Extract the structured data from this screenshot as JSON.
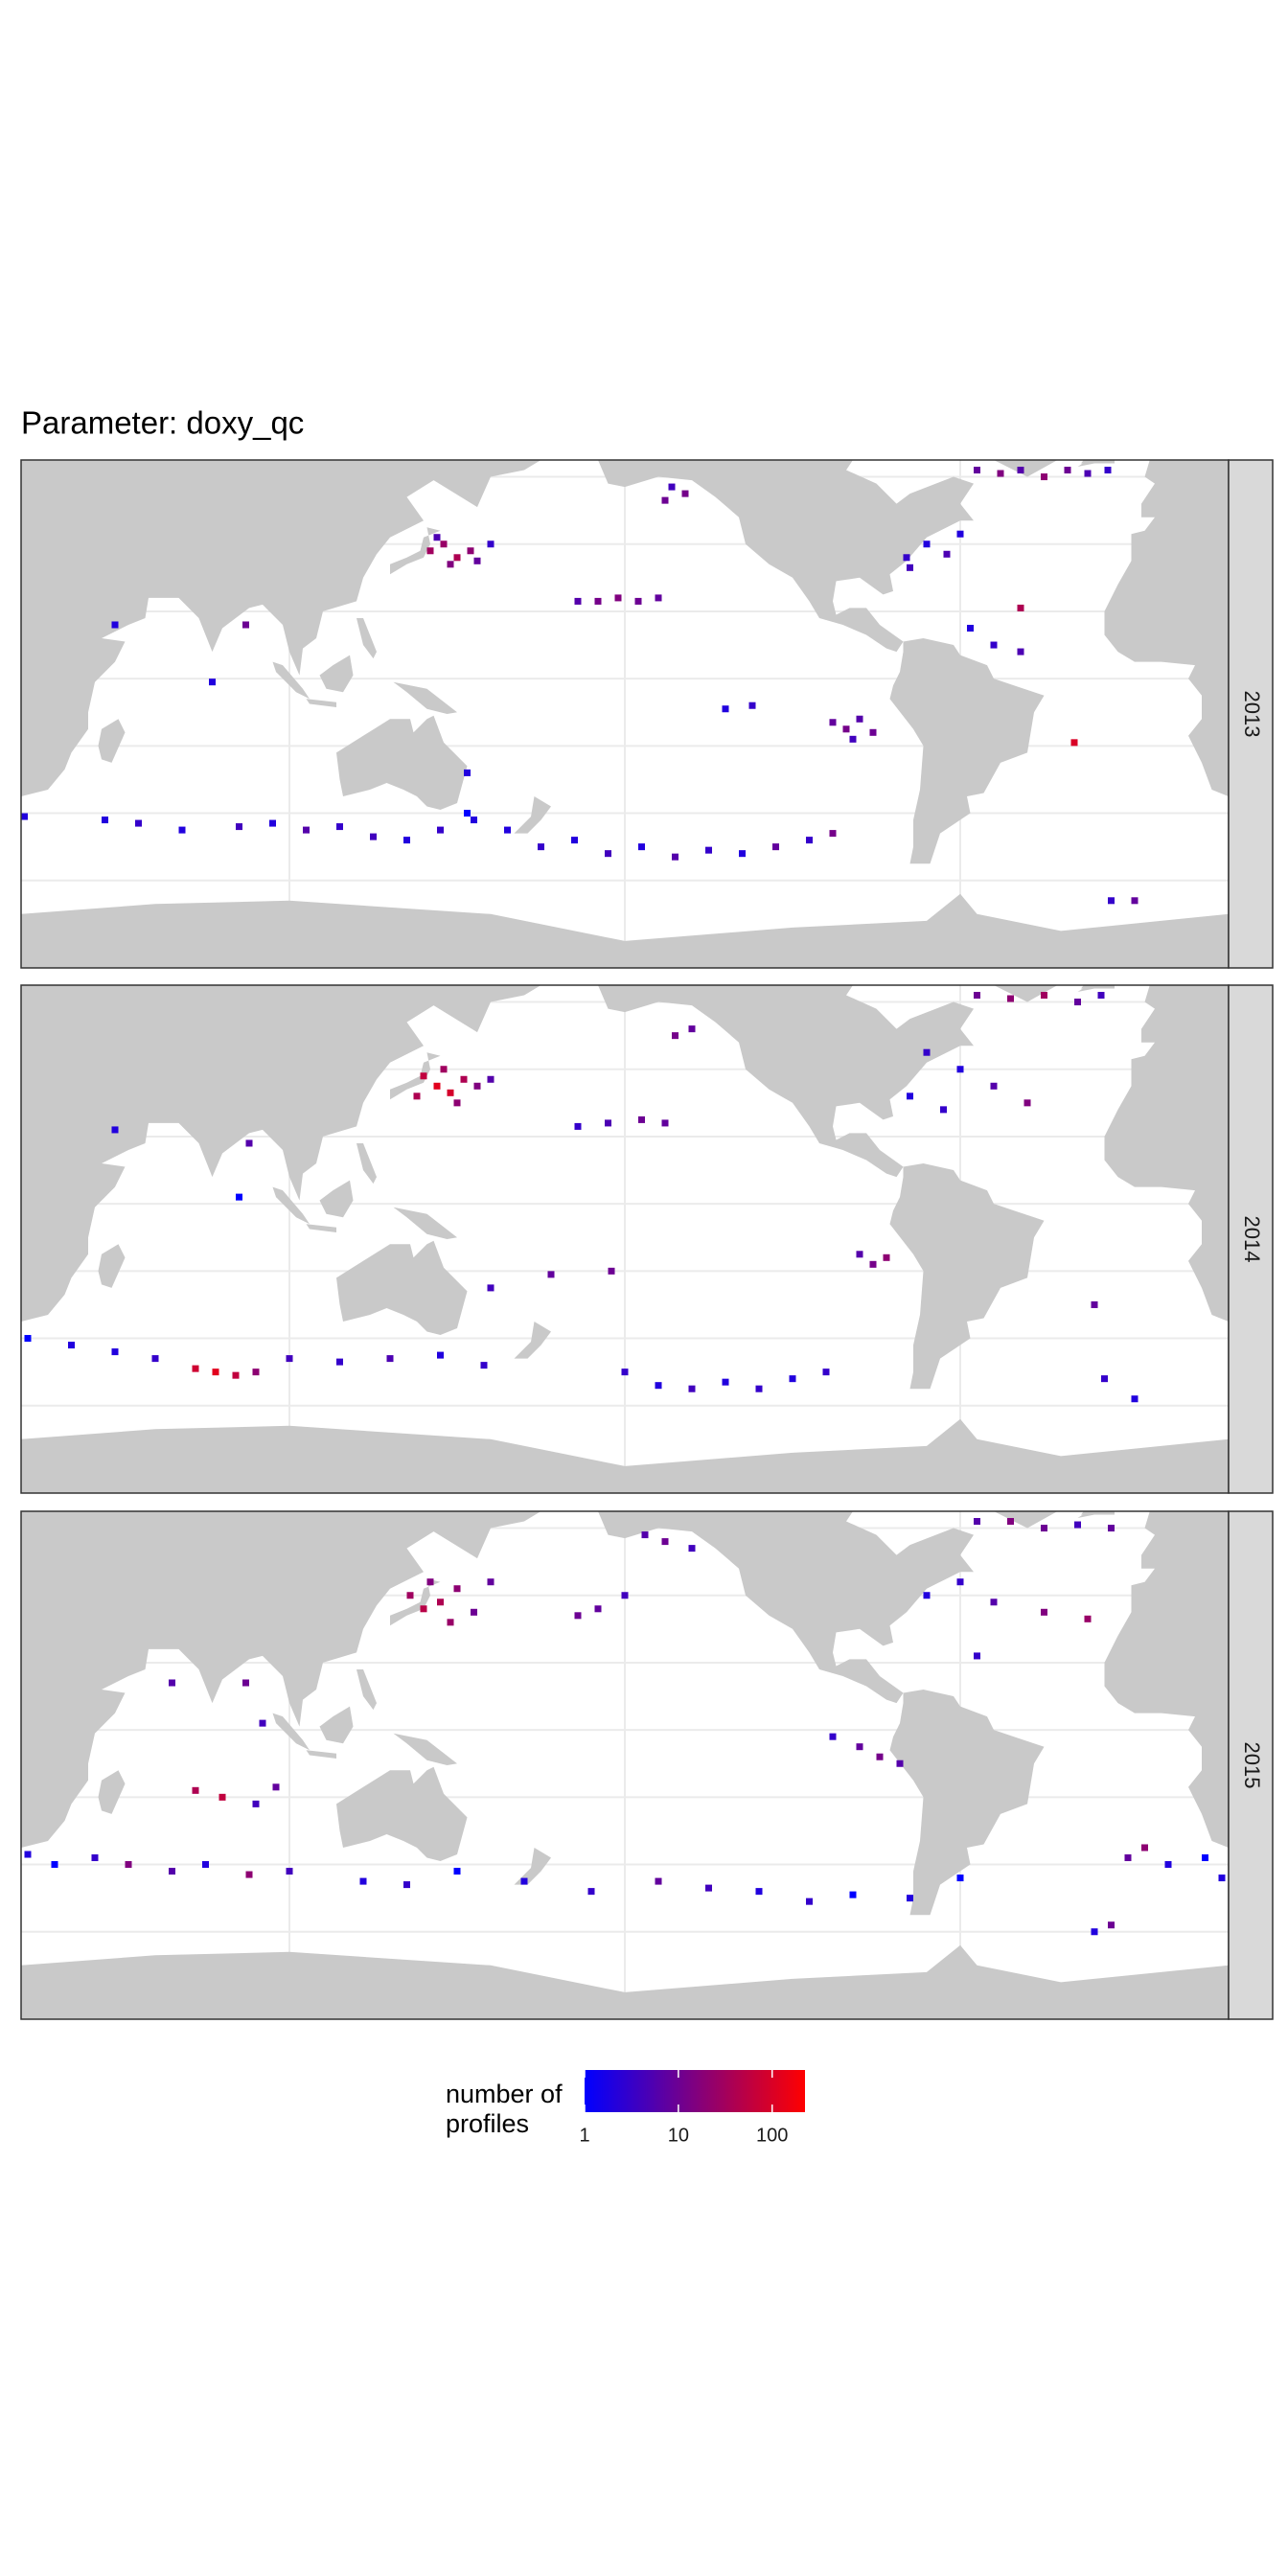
{
  "chart_data": {
    "type": "map",
    "title": "Parameter: doxy_qc",
    "xlim": [
      20,
      380
    ],
    "ylim": [
      -86,
      65
    ],
    "xticks": [
      100,
      200,
      300
    ],
    "yticks": [
      -60,
      -40,
      -20,
      0,
      20,
      40,
      60
    ],
    "grid": true,
    "facets": [
      {
        "label": "2013",
        "lon": [
          142,
          146,
          150,
          154,
          148,
          156,
          144,
          160,
          186,
          192,
          198,
          204,
          210,
          212,
          218,
          214,
          305,
          312,
          318,
          325,
          332,
          338,
          344,
          284,
          290,
          296,
          300,
          285,
          318,
          303,
          310,
          318,
          262,
          266,
          270,
          274,
          268,
          230,
          238,
          165,
          175,
          185,
          195,
          205,
          215,
          225,
          235,
          245,
          255,
          262,
          45,
          55,
          68,
          85,
          95,
          105,
          115,
          125,
          135,
          145,
          155,
          77,
          87,
          48,
          345,
          352,
          334,
          21,
          153,
          153
        ],
        "lat": [
          38,
          40,
          36,
          38,
          34,
          35,
          42,
          40,
          23,
          23,
          24,
          23,
          24,
          53,
          55,
          57,
          62,
          61,
          62,
          60,
          62,
          61,
          62,
          36,
          40,
          37,
          43,
          33,
          21,
          15,
          10,
          8,
          -13,
          -15,
          -12,
          -16,
          -18,
          -9,
          -8,
          -45,
          -50,
          -48,
          -52,
          -50,
          -53,
          -51,
          -52,
          -50,
          -48,
          -46,
          -42,
          -43,
          -45,
          -44,
          -43,
          -45,
          -44,
          -47,
          -48,
          -45,
          -42,
          -1,
          16,
          16,
          -66,
          -66,
          -19,
          -41,
          -28,
          -40
        ],
        "values": [
          30,
          25,
          40,
          20,
          15,
          8,
          5,
          3,
          6,
          12,
          15,
          10,
          8,
          10,
          12,
          4,
          8,
          15,
          6,
          20,
          10,
          5,
          3,
          3,
          2,
          5,
          2,
          4,
          40,
          2,
          3,
          5,
          8,
          12,
          6,
          10,
          4,
          2,
          3,
          2,
          3,
          2,
          4,
          2,
          6,
          3,
          2,
          8,
          3,
          12,
          2,
          3,
          2,
          4,
          2,
          6,
          3,
          4,
          2,
          3,
          2,
          2,
          10,
          2,
          3,
          8,
          100,
          2,
          2,
          1
        ]
      },
      {
        "label": "2014",
        "lon": [
          140,
          144,
          148,
          152,
          146,
          156,
          160,
          138,
          150,
          186,
          195,
          205,
          212,
          215,
          220,
          305,
          315,
          325,
          335,
          342,
          290,
          300,
          310,
          320,
          285,
          295,
          270,
          274,
          278,
          72,
          78,
          84,
          90,
          22,
          35,
          48,
          60,
          100,
          115,
          130,
          145,
          158,
          200,
          210,
          220,
          230,
          240,
          250,
          260,
          48,
          88,
          85,
          160,
          178,
          196,
          340,
          343,
          352
        ],
        "lat": [
          38,
          35,
          33,
          37,
          40,
          35,
          37,
          32,
          30,
          23,
          24,
          25,
          24,
          50,
          52,
          62,
          61,
          62,
          60,
          62,
          45,
          40,
          35,
          30,
          32,
          28,
          -15,
          -18,
          -16,
          -49,
          -50,
          -51,
          -50,
          -40,
          -42,
          -44,
          -46,
          -46,
          -47,
          -46,
          -45,
          -48,
          -50,
          -54,
          -55,
          -53,
          -55,
          -52,
          -50,
          22,
          18,
          2,
          -25,
          -21,
          -20,
          -30,
          -52,
          -58
        ],
        "values": [
          60,
          120,
          90,
          40,
          30,
          15,
          6,
          40,
          20,
          3,
          5,
          10,
          8,
          12,
          8,
          10,
          20,
          30,
          8,
          4,
          3,
          2,
          6,
          15,
          2,
          3,
          6,
          12,
          20,
          80,
          120,
          60,
          20,
          1,
          2,
          2,
          3,
          4,
          3,
          5,
          2,
          3,
          3,
          2,
          4,
          2,
          3,
          2,
          3,
          2,
          6,
          1,
          4,
          8,
          10,
          8,
          3,
          2
        ]
      },
      {
        "label": "2015",
        "lon": [
          136,
          140,
          145,
          150,
          155,
          148,
          160,
          142,
          206,
          212,
          220,
          186,
          192,
          200,
          305,
          315,
          325,
          335,
          345,
          290,
          300,
          310,
          325,
          338,
          305,
          65,
          87,
          92,
          72,
          80,
          90,
          96,
          22,
          30,
          42,
          52,
          65,
          75,
          88,
          100,
          122,
          135,
          150,
          170,
          190,
          210,
          225,
          240,
          255,
          268,
          285,
          300,
          350,
          355,
          362,
          373,
          340,
          345,
          378,
          262,
          270,
          276,
          282
        ],
        "lat": [
          40,
          36,
          38,
          42,
          35,
          32,
          44,
          44,
          58,
          56,
          54,
          34,
          36,
          40,
          62,
          62,
          60,
          61,
          60,
          40,
          44,
          38,
          35,
          33,
          22,
          14,
          14,
          2,
          -18,
          -20,
          -22,
          -17,
          -37,
          -40,
          -38,
          -40,
          -42,
          -40,
          -43,
          -42,
          -45,
          -46,
          -42,
          -45,
          -48,
          -45,
          -47,
          -48,
          -51,
          -49,
          -50,
          -44,
          -38,
          -35,
          -40,
          -38,
          -60,
          -58,
          -44,
          -2,
          -5,
          -8,
          -10
        ],
        "values": [
          30,
          50,
          40,
          20,
          10,
          25,
          8,
          15,
          6,
          10,
          4,
          10,
          8,
          4,
          6,
          15,
          10,
          4,
          8,
          2,
          3,
          6,
          15,
          25,
          3,
          6,
          10,
          4,
          40,
          60,
          4,
          8,
          2,
          1,
          3,
          15,
          6,
          2,
          20,
          4,
          2,
          3,
          1,
          2,
          3,
          8,
          4,
          2,
          3,
          1,
          2,
          1,
          8,
          20,
          2,
          1,
          2,
          10,
          2,
          3,
          8,
          12,
          6
        ]
      }
    ],
    "legend": {
      "title": [
        "number of",
        "profiles"
      ],
      "lim": [
        1,
        224
      ],
      "ticks": [
        1,
        10,
        100
      ],
      "log": true,
      "color_low": "#0000FF",
      "color_high": "#FF0000"
    }
  }
}
